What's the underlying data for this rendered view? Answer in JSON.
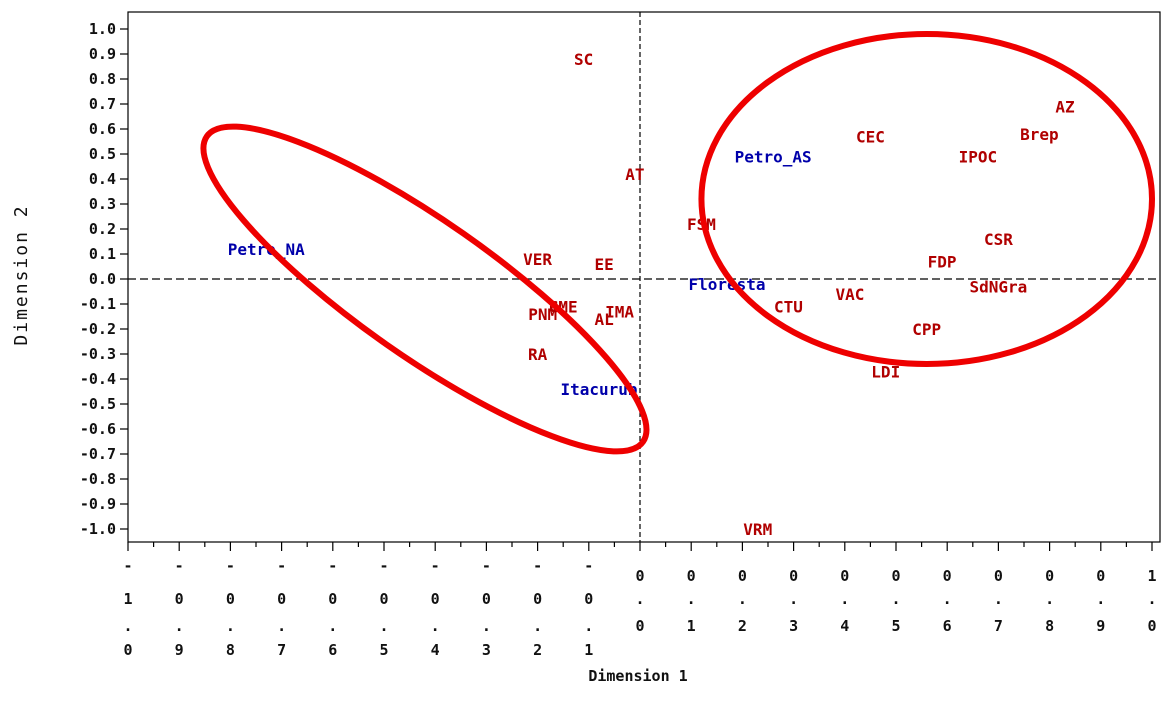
{
  "chart_data": {
    "type": "scatter",
    "xlabel": "Dimension 1",
    "ylabel": "Dimension 2",
    "xlim": [
      -1.0,
      1.0
    ],
    "ylim": [
      -1.0,
      1.0
    ],
    "x_ticks": [
      {
        "value": -1.0,
        "chars": [
          "-",
          "1",
          ".",
          "0"
        ]
      },
      {
        "value": -0.9,
        "chars": [
          "-",
          "0",
          ".",
          "9"
        ]
      },
      {
        "value": -0.8,
        "chars": [
          "-",
          "0",
          ".",
          "8"
        ]
      },
      {
        "value": -0.7,
        "chars": [
          "-",
          "0",
          ".",
          "7"
        ]
      },
      {
        "value": -0.6,
        "chars": [
          "-",
          "0",
          ".",
          "6"
        ]
      },
      {
        "value": -0.5,
        "chars": [
          "-",
          "0",
          ".",
          "5"
        ]
      },
      {
        "value": -0.4,
        "chars": [
          "-",
          "0",
          ".",
          "4"
        ]
      },
      {
        "value": -0.3,
        "chars": [
          "-",
          "0",
          ".",
          "3"
        ]
      },
      {
        "value": -0.2,
        "chars": [
          "-",
          "0",
          ".",
          "2"
        ]
      },
      {
        "value": -0.1,
        "chars": [
          "-",
          "0",
          ".",
          "1"
        ]
      },
      {
        "value": 0.0,
        "chars": [
          "0",
          ".",
          "0"
        ]
      },
      {
        "value": 0.1,
        "chars": [
          "0",
          ".",
          "1"
        ]
      },
      {
        "value": 0.2,
        "chars": [
          "0",
          ".",
          "2"
        ]
      },
      {
        "value": 0.3,
        "chars": [
          "0",
          ".",
          "3"
        ]
      },
      {
        "value": 0.4,
        "chars": [
          "0",
          ".",
          "4"
        ]
      },
      {
        "value": 0.5,
        "chars": [
          "0",
          ".",
          "5"
        ]
      },
      {
        "value": 0.6,
        "chars": [
          "0",
          ".",
          "6"
        ]
      },
      {
        "value": 0.7,
        "chars": [
          "0",
          ".",
          "7"
        ]
      },
      {
        "value": 0.8,
        "chars": [
          "0",
          ".",
          "8"
        ]
      },
      {
        "value": 0.9,
        "chars": [
          "0",
          ".",
          "9"
        ]
      },
      {
        "value": 1.0,
        "chars": [
          "1",
          ".",
          "0"
        ]
      }
    ],
    "y_ticks": [
      {
        "value": 1.0,
        "label": "1.0"
      },
      {
        "value": 0.9,
        "label": "0.9"
      },
      {
        "value": 0.8,
        "label": "0.8"
      },
      {
        "value": 0.7,
        "label": "0.7"
      },
      {
        "value": 0.6,
        "label": "0.6"
      },
      {
        "value": 0.5,
        "label": "0.5"
      },
      {
        "value": 0.4,
        "label": "0.4"
      },
      {
        "value": 0.3,
        "label": "0.3"
      },
      {
        "value": 0.2,
        "label": "0.2"
      },
      {
        "value": 0.1,
        "label": "0.1"
      },
      {
        "value": 0.0,
        "label": "0.0"
      },
      {
        "value": -0.1,
        "label": "-0.1"
      },
      {
        "value": -0.2,
        "label": "-0.2"
      },
      {
        "value": -0.3,
        "label": "-0.3"
      },
      {
        "value": -0.4,
        "label": "-0.4"
      },
      {
        "value": -0.5,
        "label": "-0.5"
      },
      {
        "value": -0.6,
        "label": "-0.6"
      },
      {
        "value": -0.7,
        "label": "-0.7"
      },
      {
        "value": -0.8,
        "label": "-0.8"
      },
      {
        "value": -0.9,
        "label": "-0.9"
      },
      {
        "value": -1.0,
        "label": "-1.0"
      }
    ],
    "reference_lines": {
      "x": 0.0,
      "y": 0.0,
      "style": "dashed"
    },
    "grid": false,
    "series": [
      {
        "color": "#0000aa",
        "points": [
          {
            "label": "Petro_NA",
            "x": -0.73,
            "y": 0.12
          },
          {
            "label": "Petro_AS",
            "x": 0.26,
            "y": 0.49
          },
          {
            "label": "Floresta",
            "x": 0.17,
            "y": -0.02
          },
          {
            "label": "Itacurub",
            "x": -0.08,
            "y": -0.44
          }
        ]
      },
      {
        "color": "#b00000",
        "points": [
          {
            "label": "SC",
            "x": -0.11,
            "y": 0.88
          },
          {
            "label": "AZ",
            "x": 0.83,
            "y": 0.69
          },
          {
            "label": "CEC",
            "x": 0.45,
            "y": 0.57
          },
          {
            "label": "Brep",
            "x": 0.78,
            "y": 0.58
          },
          {
            "label": "IPOC",
            "x": 0.66,
            "y": 0.49
          },
          {
            "label": "AT",
            "x": -0.01,
            "y": 0.42
          },
          {
            "label": "FSM",
            "x": 0.12,
            "y": 0.22
          },
          {
            "label": "CSR",
            "x": 0.7,
            "y": 0.16
          },
          {
            "label": "VER",
            "x": -0.2,
            "y": 0.08
          },
          {
            "label": "EE",
            "x": -0.07,
            "y": 0.06
          },
          {
            "label": "FDP",
            "x": 0.59,
            "y": 0.07
          },
          {
            "label": "SdNGra",
            "x": 0.7,
            "y": -0.03
          },
          {
            "label": "VAC",
            "x": 0.41,
            "y": -0.06
          },
          {
            "label": "CTU",
            "x": 0.29,
            "y": -0.11
          },
          {
            "label": "CME",
            "x": -0.15,
            "y": -0.11
          },
          {
            "label": "IMA",
            "x": -0.04,
            "y": -0.13
          },
          {
            "label": "PNM",
            "x": -0.19,
            "y": -0.14
          },
          {
            "label": "AL",
            "x": -0.07,
            "y": -0.16
          },
          {
            "label": "CPP",
            "x": 0.56,
            "y": -0.2
          },
          {
            "label": "RA",
            "x": -0.2,
            "y": -0.3
          },
          {
            "label": "LDI",
            "x": 0.48,
            "y": -0.37
          },
          {
            "label": "VRM",
            "x": 0.23,
            "y": -1.0
          }
        ]
      }
    ],
    "annotations": [
      {
        "type": "ellipse",
        "color": "#ee0000",
        "cx": -0.42,
        "cy": -0.04,
        "rx": 0.52,
        "ry": 0.27,
        "rotation_deg": 35
      },
      {
        "type": "ellipse",
        "color": "#ee0000",
        "cx": 0.56,
        "cy": 0.32,
        "rx": 0.44,
        "ry": 0.66,
        "rotation_deg": 0
      }
    ]
  }
}
